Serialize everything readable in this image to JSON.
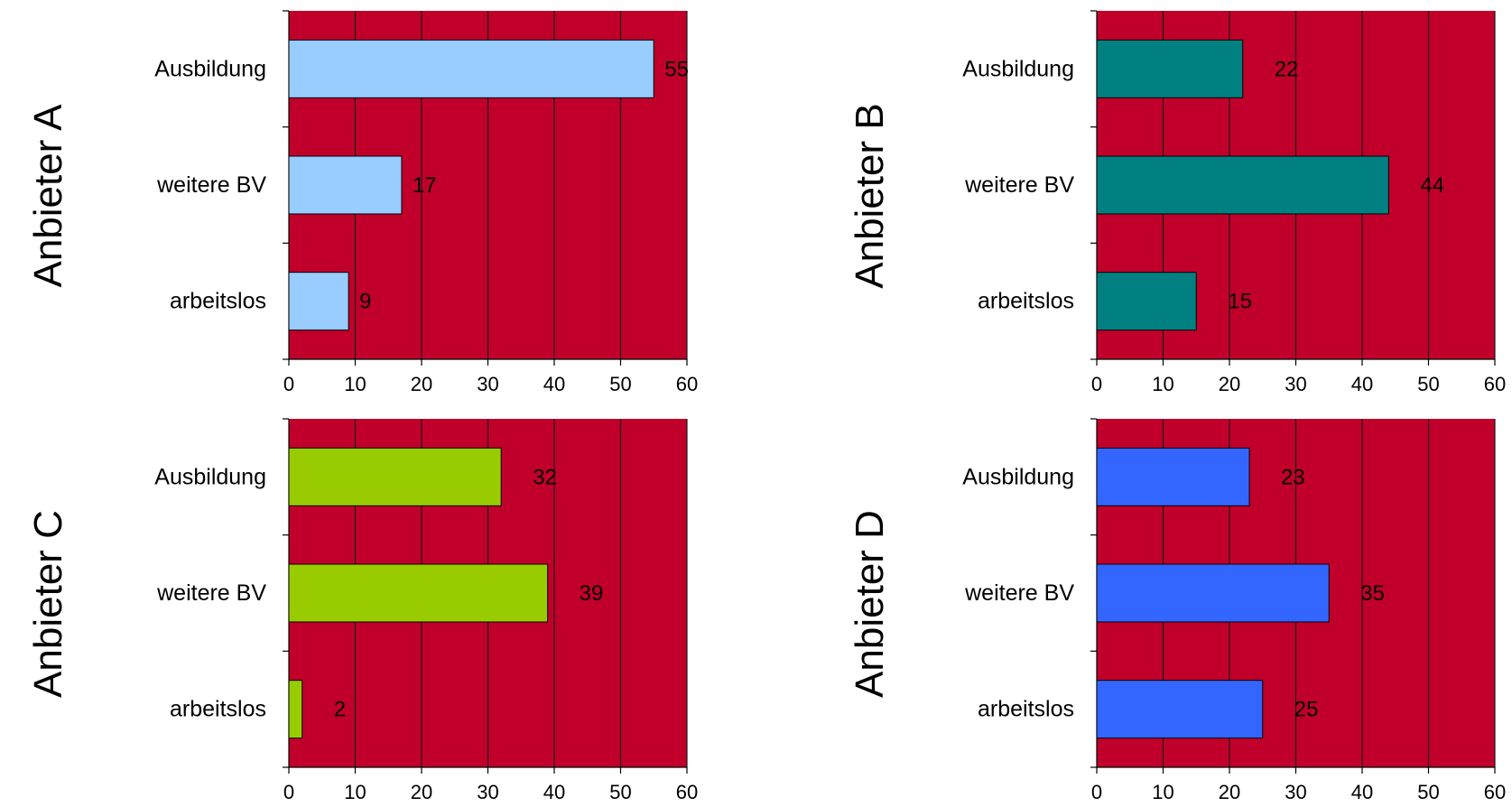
{
  "colors": {
    "plot_background": "#c0002a",
    "gridline": "#1a1a1a"
  },
  "chart_data": [
    {
      "type": "bar",
      "orientation": "horizontal",
      "ylabel": "Anbieter A",
      "categories": [
        "Ausbildung",
        "weitere BV",
        "arbeitslos"
      ],
      "values": [
        55,
        17,
        9
      ],
      "data_labels": [
        "55",
        "17",
        "9"
      ],
      "bar_color": "#99ccff",
      "xlim": [
        0,
        60
      ],
      "xticks": [
        0,
        10,
        20,
        30,
        40,
        50,
        60
      ],
      "grid": "vertical",
      "legend": "none"
    },
    {
      "type": "bar",
      "orientation": "horizontal",
      "ylabel": "Anbieter B",
      "categories": [
        "Ausbildung",
        "weitere BV",
        "arbeitslos"
      ],
      "values": [
        22,
        44,
        15
      ],
      "data_labels": [
        "22",
        "44",
        "15"
      ],
      "bar_color": "#008080",
      "xlim": [
        0,
        60
      ],
      "xticks": [
        0,
        10,
        20,
        30,
        40,
        50,
        60
      ],
      "grid": "vertical",
      "legend": "none"
    },
    {
      "type": "bar",
      "orientation": "horizontal",
      "ylabel": "Anbieter C",
      "categories": [
        "Ausbildung",
        "weitere BV",
        "arbeitslos"
      ],
      "values": [
        32,
        39,
        2
      ],
      "data_labels": [
        "32",
        "39",
        "2"
      ],
      "bar_color": "#99cc00",
      "xlim": [
        0,
        60
      ],
      "xticks": [
        0,
        10,
        20,
        30,
        40,
        50,
        60
      ],
      "grid": "vertical",
      "legend": "none"
    },
    {
      "type": "bar",
      "orientation": "horizontal",
      "ylabel": "Anbieter D",
      "categories": [
        "Ausbildung",
        "weitere BV",
        "arbeitslos"
      ],
      "values": [
        23,
        35,
        25
      ],
      "data_labels": [
        "23",
        "35",
        "25"
      ],
      "bar_color": "#3366ff",
      "xlim": [
        0,
        60
      ],
      "xticks": [
        0,
        10,
        20,
        30,
        40,
        50,
        60
      ],
      "grid": "vertical",
      "legend": "none"
    }
  ]
}
